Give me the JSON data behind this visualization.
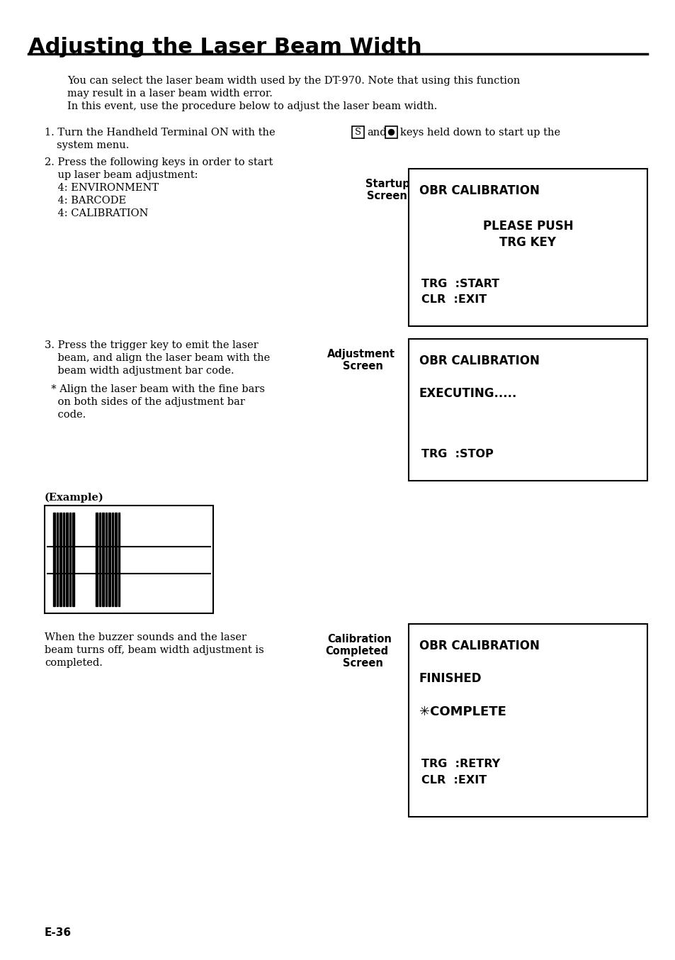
{
  "title": "Adjusting the Laser Beam Width",
  "background_color": "#ffffff",
  "text_color": "#000000",
  "page_number": "E-36",
  "body_line1": "You can select the laser beam width used by the DT-970. Note that using this function",
  "body_line2": "may result in a laser beam width error.",
  "body_line3": "In this event, use the procedure below to adjust the laser beam width.",
  "step1_part1": "1. Turn the Handheld Terminal ON with the",
  "step1_and": "and",
  "step1_part2": "keys held down to start up the",
  "step1_part3": "system menu.",
  "step2_lines": [
    "2. Press the following keys in order to start",
    "    up laser beam adjustment:",
    "    4: ENVIRONMENT",
    "    4: BARCODE",
    "    4: CALIBRATION"
  ],
  "box1_label1": "Startup",
  "box1_label2": "Screen",
  "box1_line1": "OBR CALIBRATION",
  "box1_line2": "PLEASE PUSH",
  "box1_line3": "TRG KEY",
  "box1_line4": "TRG  :START",
  "box1_line5": "CLR  :EXIT",
  "step3_lines": [
    "3. Press the trigger key to emit the laser",
    "    beam, and align the laser beam with the",
    "    beam width adjustment bar code."
  ],
  "step3_note_lines": [
    "  * Align the laser beam with the fine bars",
    "    on both sides of the adjustment bar",
    "    code."
  ],
  "example_label": "(Example)",
  "box2_label1": "Adjustment",
  "box2_label2": "Screen",
  "box2_line1": "OBR CALIBRATION",
  "box2_line2": "EXECUTING.....",
  "box2_line3": "TRG  :STOP",
  "step4_lines": [
    "When the buzzer sounds and the laser",
    "beam turns off, beam width adjustment is",
    "completed."
  ],
  "box3_label1": "Calibration",
  "box3_label2": "Completed",
  "box3_label3": "Screen",
  "box3_line1": "OBR CALIBRATION",
  "box3_line2": "FINISHED",
  "box3_line3": "✳COMPLETE",
  "box3_line4": "TRG  :RETRY",
  "box3_line5": "CLR  :EXIT"
}
